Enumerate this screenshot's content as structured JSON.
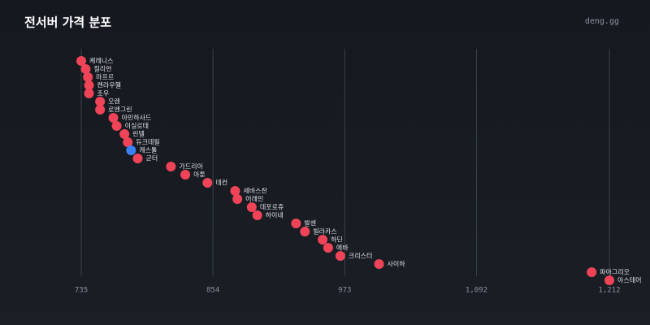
{
  "chart_data": {
    "type": "dot",
    "title": "전서버 가격 분포",
    "watermark": "deng.gg",
    "categories": [
      "케레니스",
      "질리언",
      "마프르",
      "켄라우헬",
      "조우",
      "오렌",
      "로엔그린",
      "아인하사드",
      "이실로테",
      "린델",
      "듀크데필",
      "캐스톨",
      "군터",
      "가드리아",
      "아툰",
      "데컨",
      "세바스찬",
      "어레인",
      "데포로쥬",
      "하이네",
      "발센",
      "빌라카스",
      "하딘",
      "에바",
      "크리스터",
      "사이하",
      "파아그리오",
      "아스테어"
    ],
    "values": [
      735,
      739,
      741,
      742,
      742,
      752,
      752,
      764,
      767,
      774,
      777,
      780,
      786,
      816,
      829,
      849,
      874,
      876,
      889,
      894,
      929,
      937,
      953,
      958,
      969,
      1004,
      1196,
      1212
    ],
    "point_colors": [
      "#ef4458",
      "#ef4458",
      "#ef4458",
      "#ef4458",
      "#ef4458",
      "#ef4458",
      "#ef4458",
      "#ef4458",
      "#ef4458",
      "#ef4458",
      "#ef4458",
      "#3b82f6",
      "#ef4458",
      "#ef4458",
      "#ef4458",
      "#ef4458",
      "#ef4458",
      "#ef4458",
      "#ef4458",
      "#ef4458",
      "#ef4458",
      "#ef4458",
      "#ef4458",
      "#ef4458",
      "#ef4458",
      "#ef4458",
      "#ef4458",
      "#ef4458"
    ],
    "xlim": [
      735,
      1212
    ],
    "xticks": [
      735,
      854,
      973,
      {
        "value": 1092,
        "label": "1,092"
      },
      {
        "value": 1212,
        "label": "1,212"
      }
    ],
    "grid": true
  }
}
